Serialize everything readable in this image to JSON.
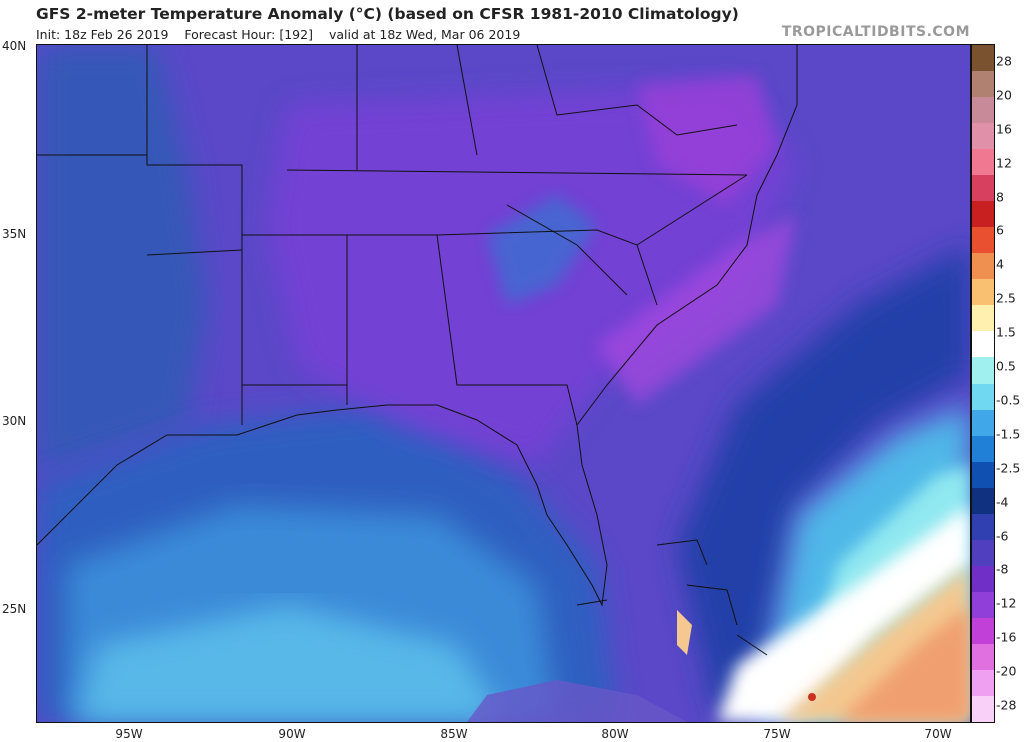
{
  "header": {
    "title": "GFS 2-meter Temperature Anomaly (°C) (based on CFSR 1981-2010 Climatology)",
    "init": "Init: 18z Feb 26 2019",
    "forecast_hour": "Forecast Hour: [192]",
    "valid": "valid at 18z Wed, Mar 06 2019",
    "brand": "TROPICALTIDBITS.COM"
  },
  "axes": {
    "lat_labels": [
      "40N",
      "35N",
      "30N",
      "25N"
    ],
    "lon_labels": [
      "95W",
      "90W",
      "85W",
      "80W",
      "75W",
      "70W"
    ]
  },
  "colorbar": {
    "labels": [
      "28",
      "20",
      "16",
      "12",
      "8",
      "6",
      "4",
      "2.5",
      "1.5",
      "0.5",
      "-0.5",
      "-1.5",
      "-2.5",
      "-4",
      "-6",
      "-8",
      "-12",
      "-16",
      "-20",
      "-28"
    ],
    "colors": [
      "#7a5230",
      "#b08070",
      "#c88a98",
      "#e090a8",
      "#f07890",
      "#d84060",
      "#c82020",
      "#e85030",
      "#f09050",
      "#f8c070",
      "#fff0b0",
      "#ffffff",
      "#a0f0f0",
      "#70d8f0",
      "#40a8e8",
      "#2080d8",
      "#1050b0",
      "#103080",
      "#3040b0",
      "#5040c0",
      "#7030c8",
      "#9040d8",
      "#c040d8",
      "#e070e0",
      "#f0a0f0",
      "#f8d0f8"
    ]
  }
}
